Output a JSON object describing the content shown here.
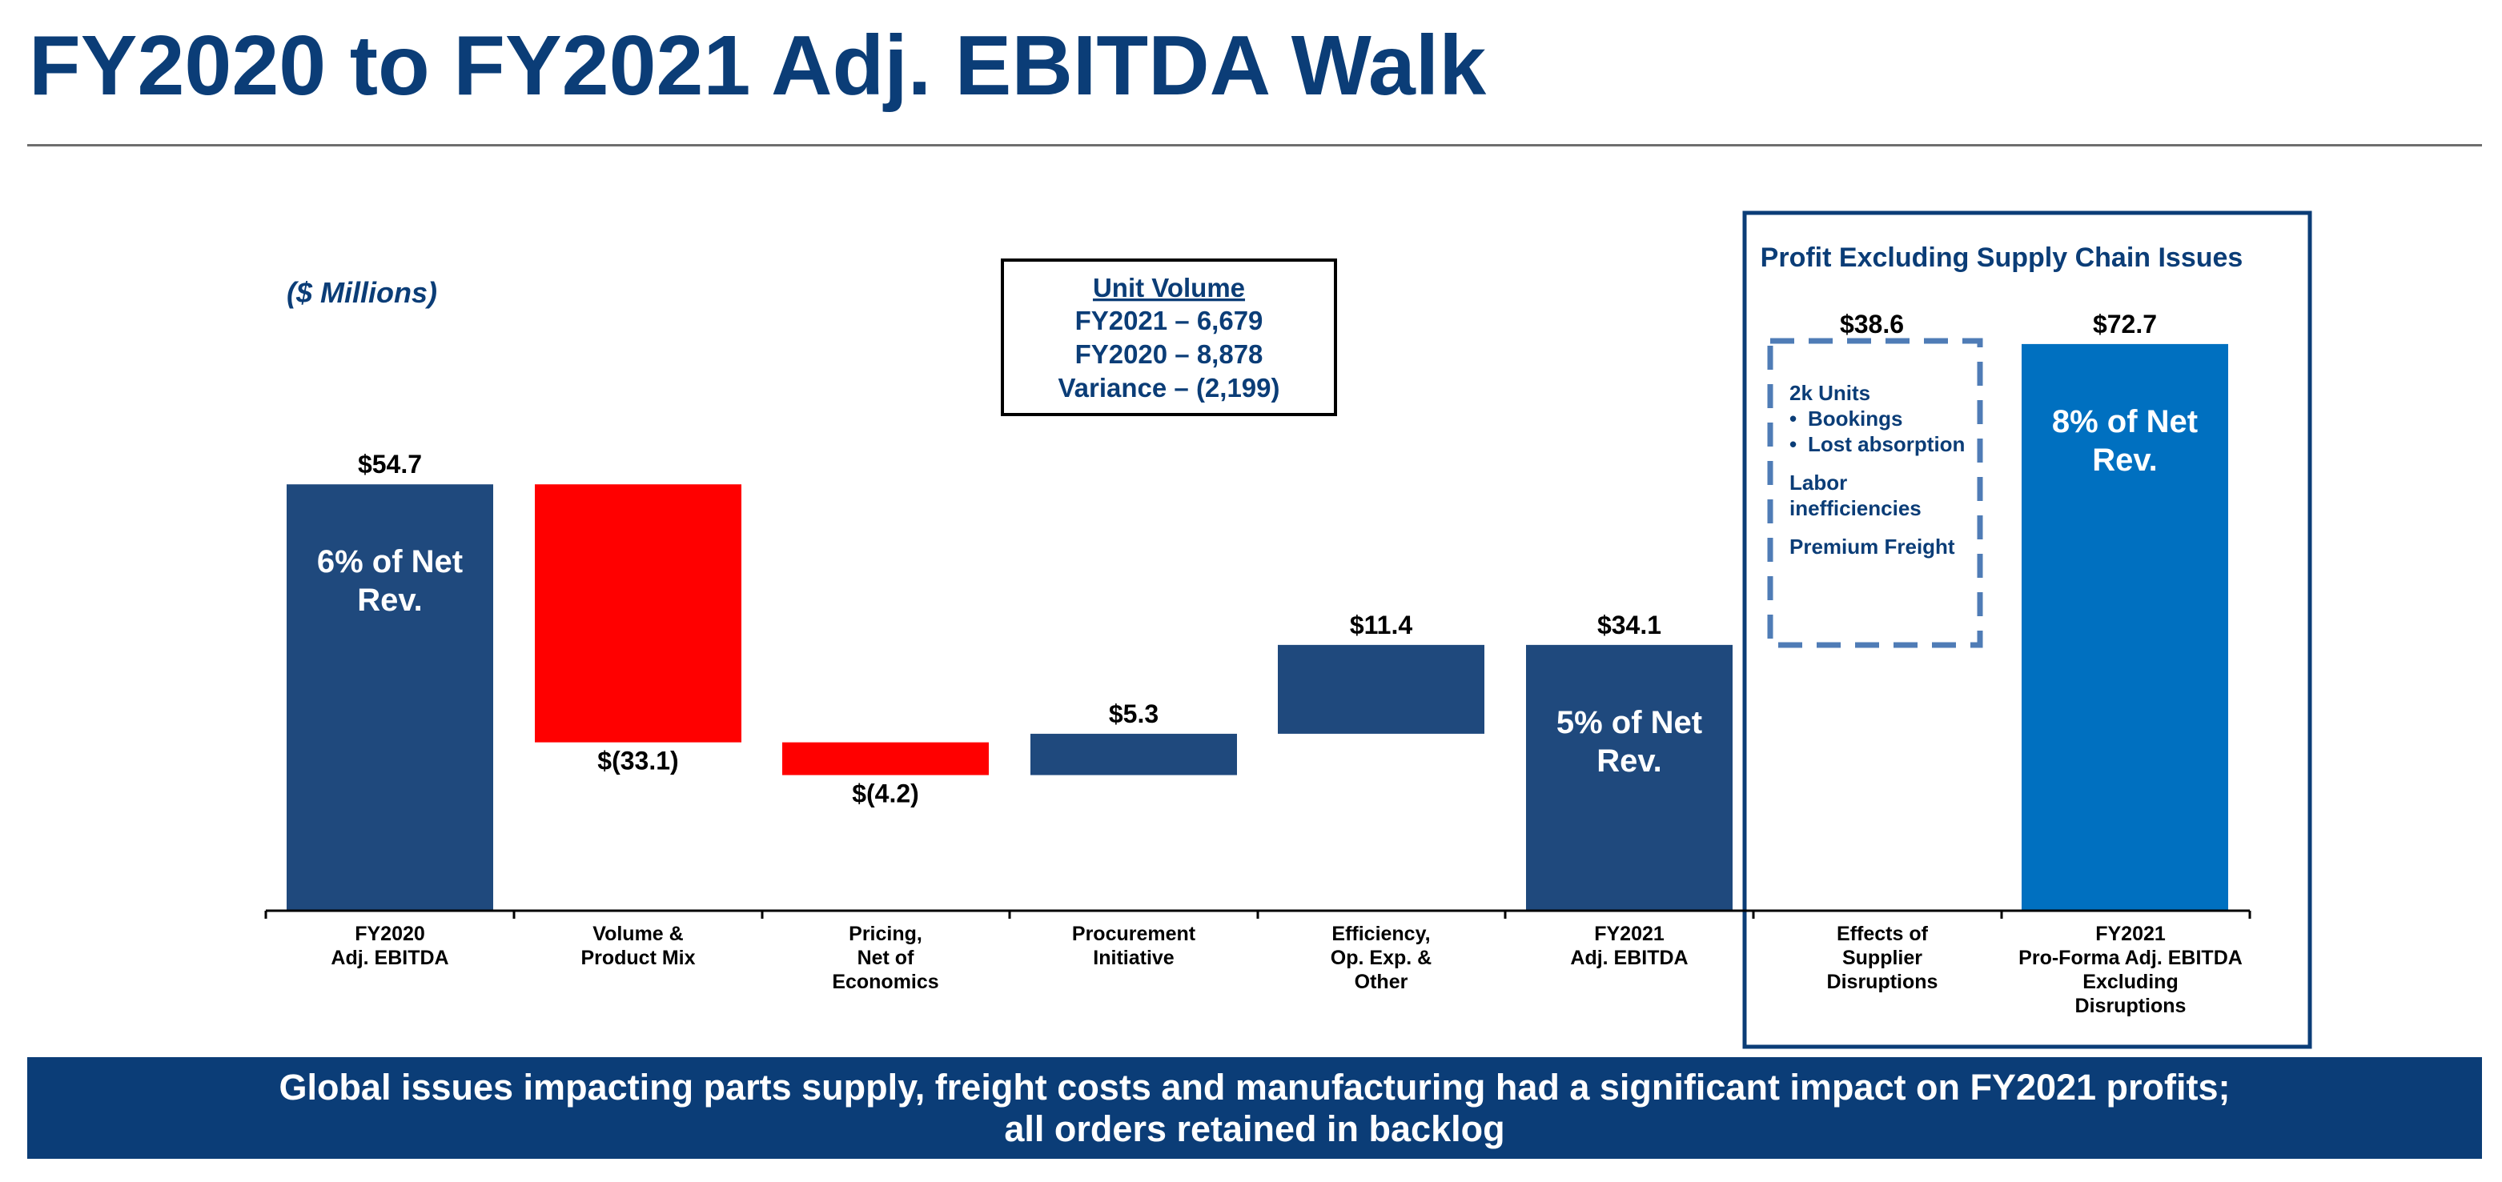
{
  "page": {
    "title": "FY2020 to FY2021 Adj. EBITDA Walk",
    "banner_line1": "Global issues impacting parts supply, freight costs and manufacturing had a significant impact on FY2021 profits;",
    "banner_line2": "all orders retained in backlog"
  },
  "chart_data": {
    "type": "bar",
    "subtype": "waterfall",
    "units_label": "($ Millions)",
    "categories": [
      [
        "FY2020",
        "Adj. EBITDA"
      ],
      [
        "Volume &",
        "Product Mix"
      ],
      [
        "Pricing,",
        "Net of",
        "Economics"
      ],
      [
        "Procurement",
        "Initiative"
      ],
      [
        "Efficiency,",
        "Op. Exp. &",
        "Other"
      ],
      [
        "FY2021",
        "Adj. EBITDA"
      ],
      [
        "Effects of",
        "Supplier",
        "Disruptions"
      ],
      [
        "FY2021",
        "Pro-Forma Adj. EBITDA",
        "Excluding",
        "Disruptions"
      ]
    ],
    "values": [
      54.7,
      -33.1,
      -4.2,
      5.3,
      11.4,
      34.1,
      38.6,
      72.7
    ],
    "bar_kind": [
      "total",
      "delta",
      "delta",
      "delta",
      "delta",
      "total",
      "delta",
      "total"
    ],
    "value_labels": [
      "$54.7",
      "$(33.1)",
      "$(4.2)",
      "$5.3",
      "$11.4",
      "$34.1",
      "$38.6",
      "$72.7"
    ],
    "inside_labels": [
      [
        "6% of Net",
        "Rev."
      ],
      [],
      [],
      [],
      [],
      [
        "5% of Net",
        "Rev."
      ],
      [],
      [
        "8% of Net",
        "Rev."
      ]
    ],
    "ylim": [
      0,
      80
    ],
    "xlabel": "",
    "ylabel": "",
    "grid": false,
    "colors": {
      "total": "#1f497d",
      "increase": "#1f497d",
      "decrease": "#ff0000",
      "proforma": "#0070c0",
      "text": "#0b3d77"
    },
    "unit_volume": {
      "heading": "Unit Volume",
      "lines": [
        "FY2021  –  6,679",
        "FY2020  –  8,878",
        "Variance –  (2,199)"
      ]
    },
    "highlight_box": {
      "title": "Profit Excluding Supply Chain Issues"
    },
    "disruption_notes": [
      {
        "text": "2k Units",
        "bullet": false
      },
      {
        "text": "Bookings",
        "bullet": true
      },
      {
        "text": "Lost absorption",
        "bullet": true
      },
      {
        "text": "",
        "bullet": false
      },
      {
        "text": "Labor",
        "bullet": false
      },
      {
        "text": "inefficiencies",
        "bullet": false
      },
      {
        "text": "",
        "bullet": false
      },
      {
        "text": "Premium Freight",
        "bullet": false
      }
    ]
  }
}
